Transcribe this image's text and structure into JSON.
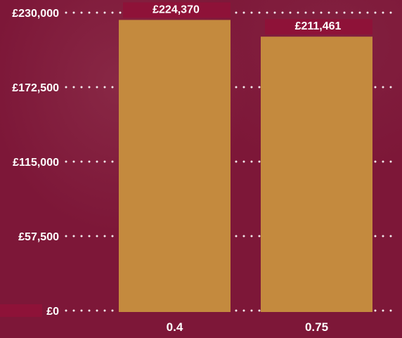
{
  "chart_data": {
    "type": "bar",
    "categories": [
      "0.4",
      "0.75"
    ],
    "values": [
      224370,
      211461
    ],
    "value_labels": [
      "£224,370",
      "£211,461"
    ],
    "y_ticks": [
      0,
      57500,
      115000,
      172500,
      230000
    ],
    "y_tick_labels": [
      "£0",
      "£57,500",
      "£115,000",
      "£172,500",
      "£230,000"
    ],
    "ylim": [
      0,
      230000
    ],
    "grid": true,
    "colors": {
      "background": "#7d1738",
      "bar": "#c48a3e",
      "label_box": "#8e1238",
      "text": "#ffffff"
    }
  }
}
